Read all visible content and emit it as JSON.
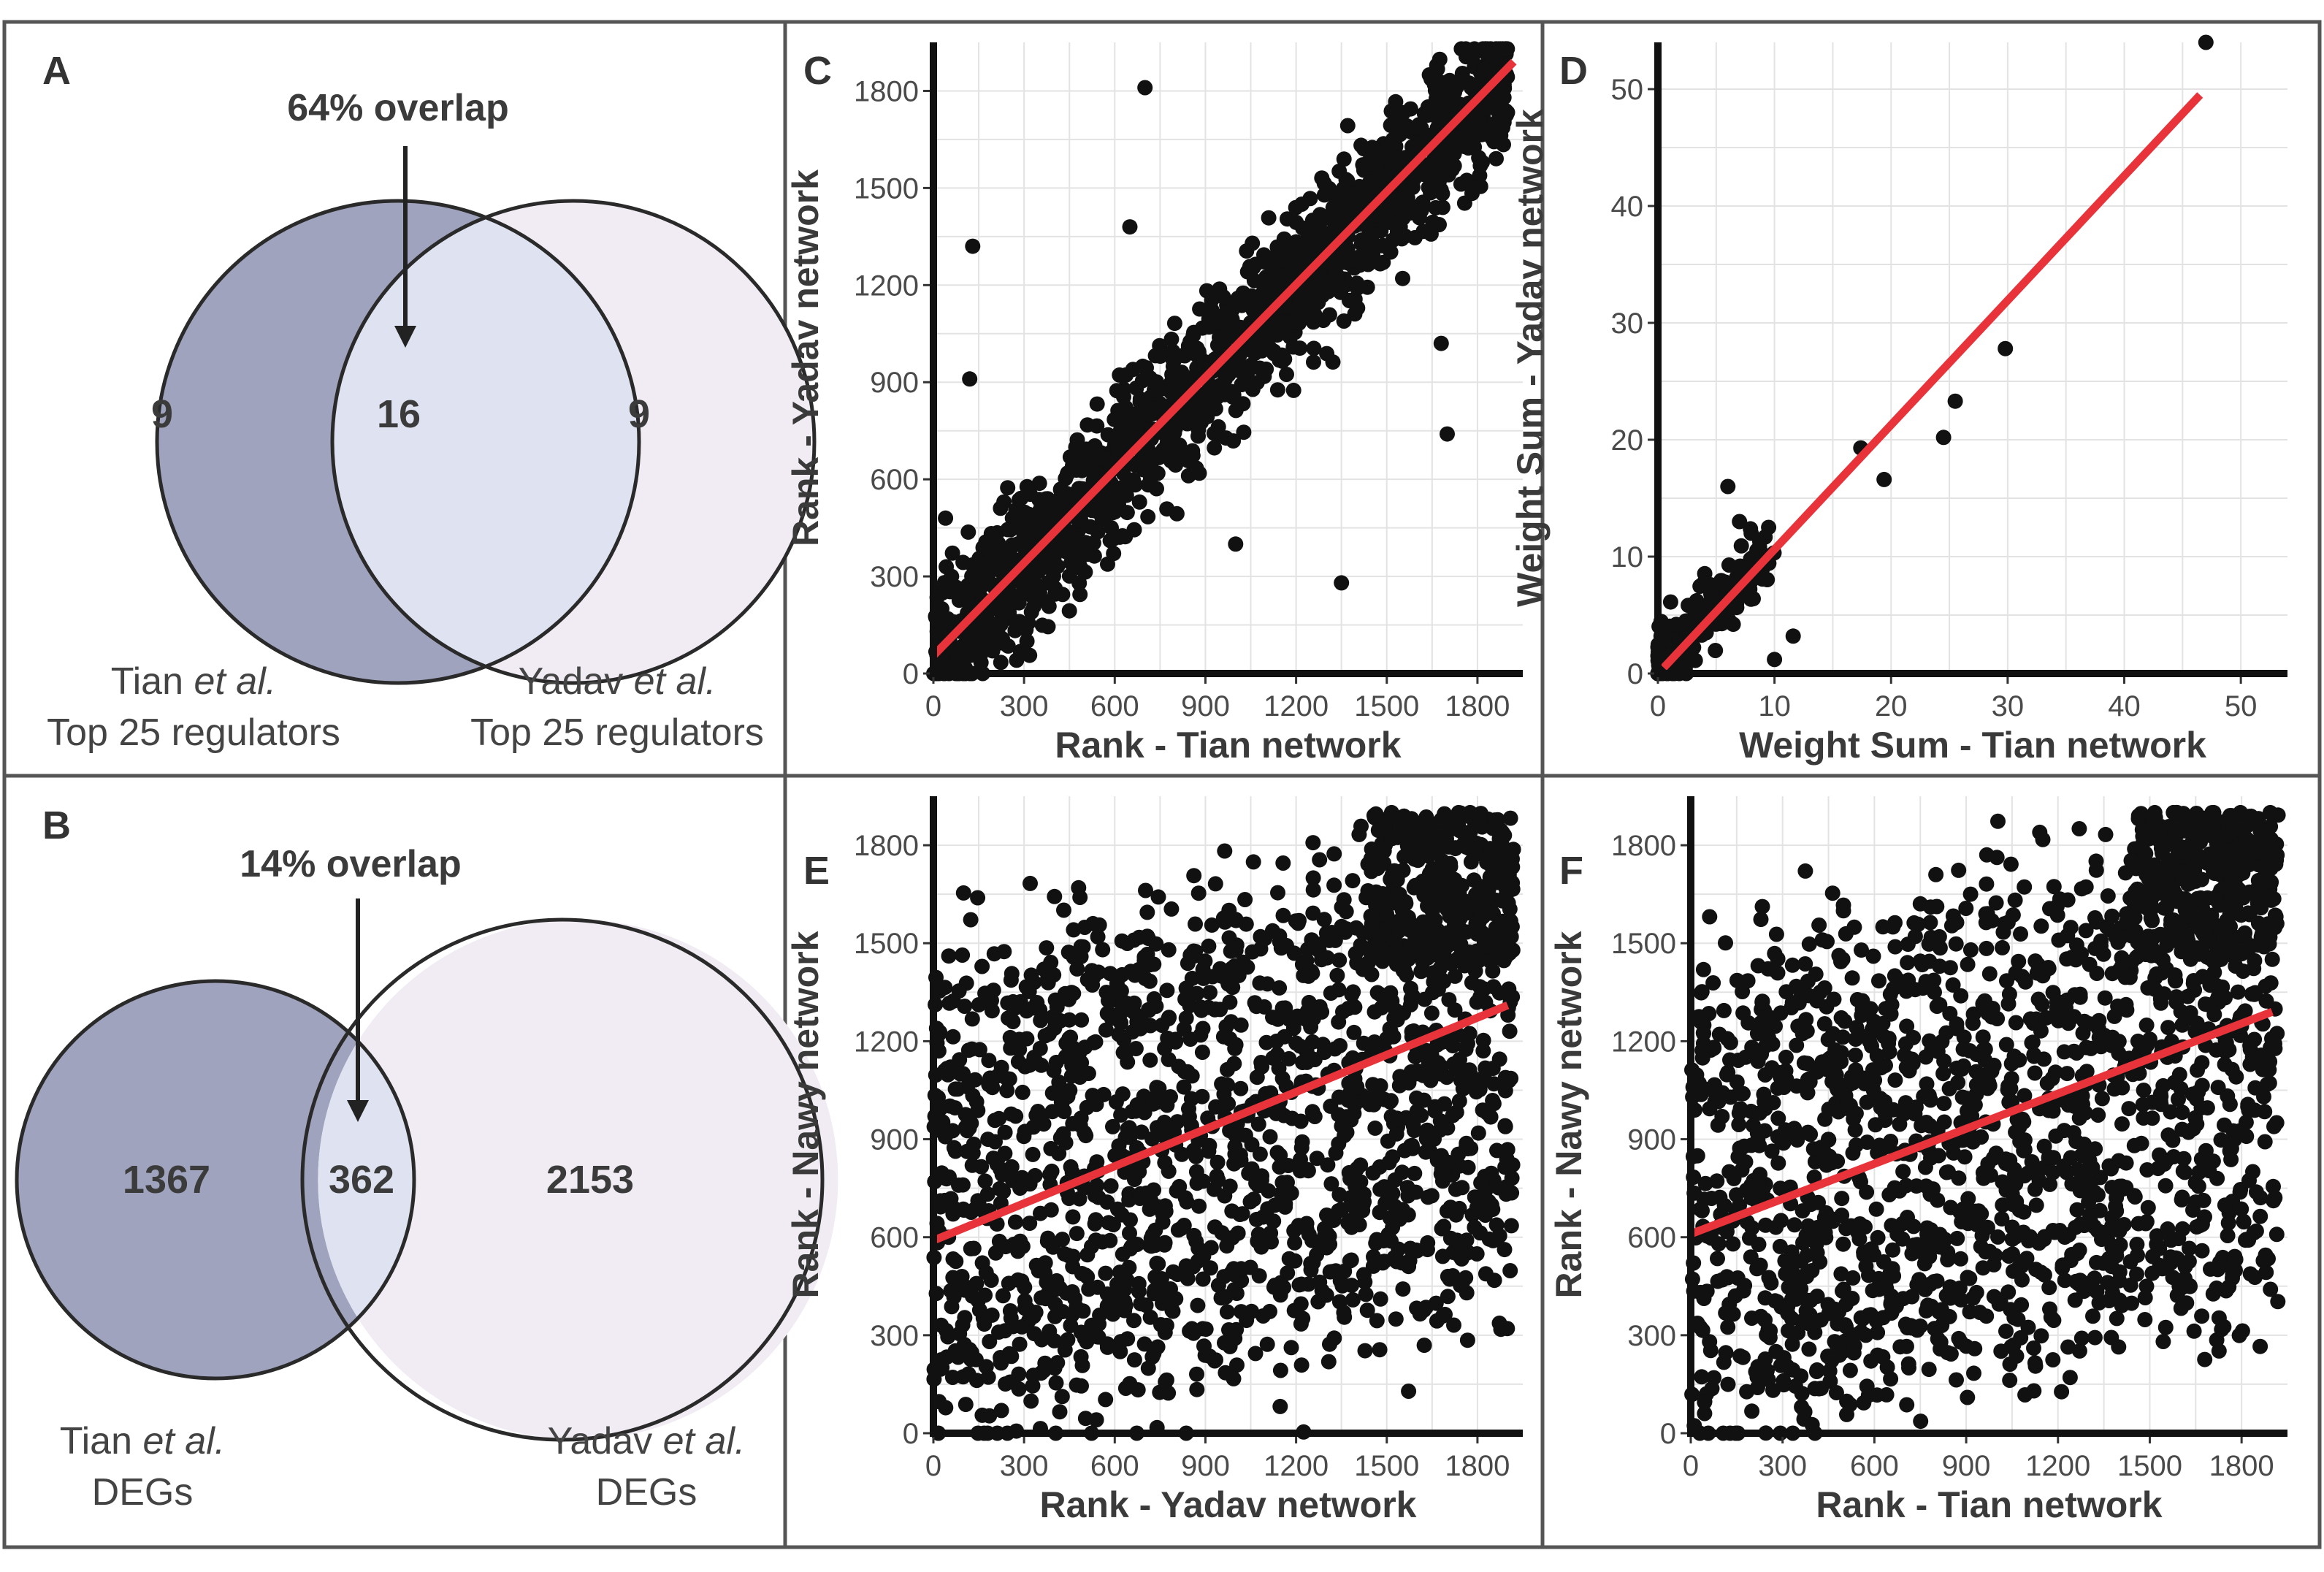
{
  "panels": {
    "A": {
      "letter": "A",
      "overlap_label": "64% overlap",
      "left_only": "9",
      "both": "16",
      "right_only": "9",
      "left_caption": [
        "Tian ",
        "et al.",
        "Top 25 regulators"
      ],
      "right_caption": [
        "Yadav ",
        "et al.",
        "Top 25 regulators"
      ]
    },
    "B": {
      "letter": "B",
      "overlap_label": "14% overlap",
      "left_only": "1367",
      "both": "362",
      "right_only": "2153",
      "left_caption": [
        "Tian ",
        "et al.",
        "DEGs"
      ],
      "right_caption": [
        "Yadav ",
        "et al.",
        "DEGs"
      ]
    },
    "C": {
      "letter": "C"
    },
    "D": {
      "letter": "D"
    },
    "E": {
      "letter": "E"
    },
    "F": {
      "letter": "F"
    }
  },
  "colors": {
    "venn_left": "#9fa3bd",
    "venn_overlap": "#dfe2f0",
    "venn_right": "#f1ebf3",
    "points": "#111111",
    "fit_line": "#e8333a",
    "grid": "#e3e3e3"
  },
  "chart_data": [
    {
      "panel": "C",
      "type": "scatter",
      "xlabel": "Rank - Tian network",
      "ylabel": "Rank - Yadav network",
      "xlim": [
        0,
        1950
      ],
      "ylim": [
        0,
        1950
      ],
      "xticks": [
        0,
        300,
        600,
        900,
        1200,
        1500,
        1800
      ],
      "yticks": [
        0,
        300,
        600,
        900,
        1200,
        1500,
        1800
      ],
      "fit_line": [
        [
          0,
          55
        ],
        [
          1920,
          1890
        ]
      ],
      "n_points": 1500,
      "pattern": "tight positive correlation along diagonal",
      "outliers": [
        [
          130,
          1320
        ],
        [
          120,
          910
        ],
        [
          700,
          1810
        ],
        [
          650,
          1380
        ],
        [
          1350,
          280
        ],
        [
          1700,
          740
        ],
        [
          1680,
          1020
        ],
        [
          1000,
          400
        ],
        [
          60,
          300
        ],
        [
          40,
          480
        ]
      ]
    },
    {
      "panel": "D",
      "type": "scatter",
      "xlabel": "Weight Sum - Tian network",
      "ylabel": "Weight Sum - Yadav network",
      "xlim": [
        0,
        54
      ],
      "ylim": [
        0,
        54
      ],
      "xticks": [
        0,
        10,
        20,
        30,
        40,
        50
      ],
      "yticks": [
        0,
        10,
        20,
        30,
        40,
        50
      ],
      "fit_line": [
        [
          0.5,
          0.5
        ],
        [
          46.5,
          49.5
        ]
      ],
      "n_points": 220,
      "pattern": "most points clustered near origin",
      "outliers": [
        [
          47,
          54
        ],
        [
          29.8,
          27.8
        ],
        [
          25.5,
          23.3
        ],
        [
          24.5,
          20.2
        ],
        [
          19.4,
          16.6
        ],
        [
          17.4,
          19.3
        ],
        [
          11.6,
          3.2
        ],
        [
          10,
          1.2
        ],
        [
          6,
          16
        ],
        [
          9.5,
          12.5
        ],
        [
          8,
          12
        ],
        [
          7,
          13
        ]
      ]
    },
    {
      "panel": "E",
      "type": "scatter",
      "xlabel": "Rank - Yadav network",
      "ylabel": "Rank - Nawy network",
      "xlim": [
        0,
        1950
      ],
      "ylim": [
        0,
        1950
      ],
      "xticks": [
        0,
        300,
        600,
        900,
        1200,
        1500,
        1800
      ],
      "yticks": [
        0,
        300,
        600,
        900,
        1200,
        1500,
        1800
      ],
      "fit_line": [
        [
          0,
          590
        ],
        [
          1900,
          1310
        ]
      ],
      "n_points": 1900,
      "pattern": "weak positive correlation, dense cluster at top-right"
    },
    {
      "panel": "F",
      "type": "scatter",
      "xlabel": "Rank - Tian network",
      "ylabel": "Rank - Nawy network",
      "xlim": [
        0,
        1950
      ],
      "ylim": [
        0,
        1950
      ],
      "xticks": [
        0,
        300,
        600,
        900,
        1200,
        1500,
        1800
      ],
      "yticks": [
        0,
        300,
        600,
        900,
        1200,
        1500,
        1800
      ],
      "fit_line": [
        [
          0,
          610
        ],
        [
          1900,
          1290
        ]
      ],
      "n_points": 1900,
      "pattern": "weak positive correlation, dense cluster at top-right"
    }
  ]
}
